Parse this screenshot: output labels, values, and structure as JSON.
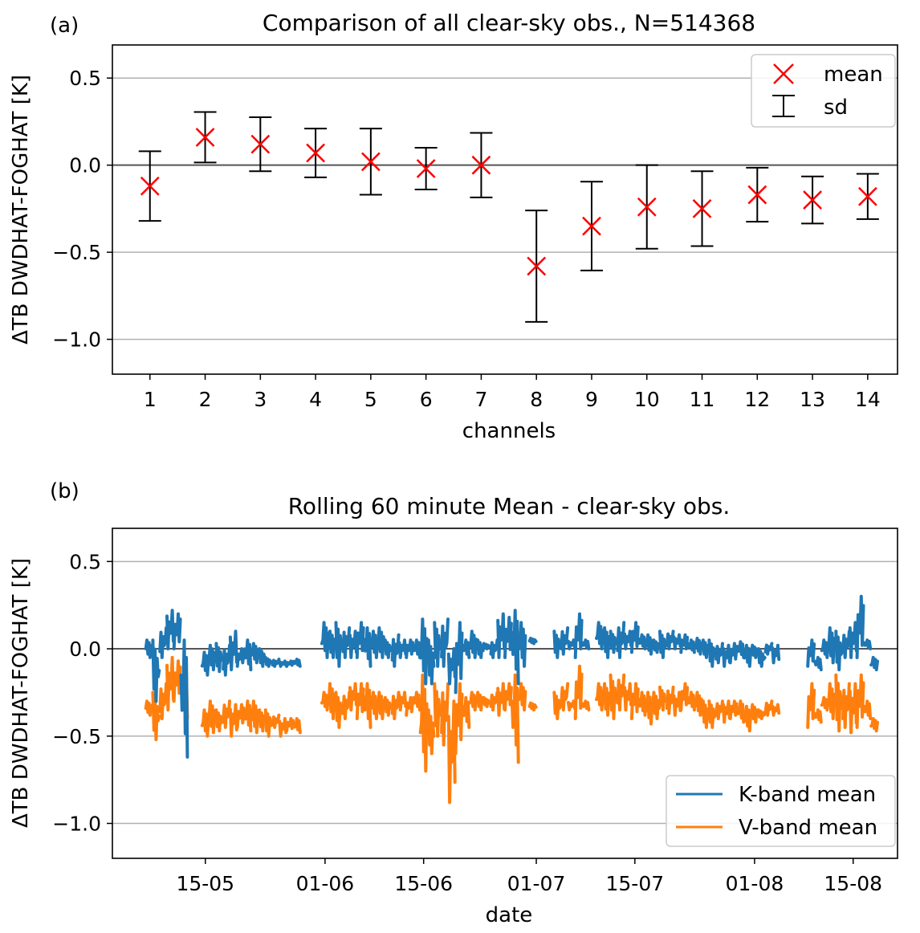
{
  "chart_data": [
    {
      "type": "errorbar",
      "panel_label": "(a)",
      "title": "Comparison of all clear-sky obs., N=514368",
      "xlabel": "channels",
      "ylabel": "ΔTB DWDHAT-FOGHAT [K]",
      "xlim": [
        0.32,
        14.54
      ],
      "ylim": [
        -1.2,
        0.69
      ],
      "yticks": [
        0.5,
        0.0,
        -0.5,
        -1.0
      ],
      "ytick_labels": [
        "0.5",
        "0.0",
        "−0.5",
        "−1.0"
      ],
      "grid": "horizontal",
      "legend": {
        "placement": "top-right",
        "entries": [
          "mean",
          "sd"
        ]
      },
      "categories": [
        "1",
        "2",
        "3",
        "4",
        "5",
        "6",
        "7",
        "8",
        "9",
        "10",
        "11",
        "12",
        "13",
        "14"
      ],
      "mean": [
        -0.12,
        0.16,
        0.12,
        0.07,
        0.02,
        -0.02,
        0.0,
        -0.58,
        -0.35,
        -0.24,
        -0.25,
        -0.17,
        -0.2,
        -0.18
      ],
      "sd": [
        0.2,
        0.145,
        0.155,
        0.14,
        0.19,
        0.12,
        0.185,
        0.32,
        0.255,
        0.24,
        0.215,
        0.155,
        0.135,
        0.13
      ],
      "colors": {
        "mean": "#ff0000",
        "sd": "#000000"
      }
    },
    {
      "type": "line",
      "panel_label": "(b)",
      "title": "Rolling 60 minute Mean - clear-sky obs.",
      "xlabel": "date",
      "ylabel": "ΔTB DWDHAT-FOGHAT [K]",
      "x_units": "days since 01-05",
      "xlim": [
        0.8,
        112.3
      ],
      "ylim": [
        -1.2,
        0.69
      ],
      "xticks": [
        {
          "day": 14,
          "label": "15-05"
        },
        {
          "day": 31,
          "label": "01-06"
        },
        {
          "day": 45,
          "label": "15-06"
        },
        {
          "day": 61,
          "label": "01-07"
        },
        {
          "day": 75,
          "label": "15-07"
        },
        {
          "day": 92,
          "label": "01-08"
        },
        {
          "day": 106,
          "label": "15-08"
        }
      ],
      "yticks": [
        0.5,
        0.0,
        -0.5,
        -1.0
      ],
      "ytick_labels": [
        "0.5",
        "0.0",
        "−0.5",
        "−1.0"
      ],
      "grid": "horizontal",
      "legend": {
        "placement": "bottom-right"
      },
      "series": [
        {
          "name": "K-band mean",
          "color": "#1f77b4"
        },
        {
          "name": "V-band mean",
          "color": "#ff7f0e"
        }
      ],
      "daily_range_columns": [
        "day",
        "k_min",
        "k_max",
        "v_min",
        "v_max"
      ],
      "daily_range": [
        [
          6,
          -0.05,
          0.05,
          -0.38,
          -0.3
        ],
        [
          7,
          -0.3,
          0.05,
          -0.52,
          -0.25
        ],
        [
          8,
          -0.05,
          0.12,
          -0.4,
          -0.2
        ],
        [
          9,
          0.0,
          0.22,
          -0.35,
          -0.05
        ],
        [
          10,
          0.0,
          0.2,
          -0.3,
          -0.07
        ],
        [
          11,
          -0.62,
          0.05,
          -0.4,
          -0.1
        ],
        [
          14,
          -0.15,
          -0.02,
          -0.5,
          -0.35
        ],
        [
          15,
          -0.12,
          0.02,
          -0.48,
          -0.3
        ],
        [
          16,
          -0.13,
          0.03,
          -0.47,
          -0.35
        ],
        [
          17,
          -0.15,
          0.02,
          -0.45,
          -0.3
        ],
        [
          18,
          -0.12,
          0.1,
          -0.5,
          -0.32
        ],
        [
          19,
          -0.1,
          0.0,
          -0.45,
          -0.32
        ],
        [
          20,
          -0.12,
          0.05,
          -0.47,
          -0.3
        ],
        [
          21,
          -0.08,
          0.03,
          -0.48,
          -0.3
        ],
        [
          22,
          -0.1,
          0.0,
          -0.47,
          -0.35
        ],
        [
          23,
          -0.1,
          -0.05,
          -0.5,
          -0.35
        ],
        [
          24,
          -0.1,
          -0.06,
          -0.45,
          -0.38
        ],
        [
          25,
          -0.1,
          -0.07,
          -0.5,
          -0.4
        ],
        [
          26,
          -0.1,
          -0.07,
          -0.47,
          -0.4
        ],
        [
          27,
          -0.1,
          -0.06,
          -0.48,
          -0.4
        ],
        [
          31,
          -0.05,
          0.15,
          -0.35,
          -0.25
        ],
        [
          32,
          -0.05,
          0.1,
          -0.4,
          -0.2
        ],
        [
          33,
          -0.1,
          0.15,
          -0.45,
          -0.25
        ],
        [
          34,
          -0.05,
          0.12,
          -0.4,
          -0.25
        ],
        [
          35,
          -0.05,
          0.1,
          -0.35,
          -0.2
        ],
        [
          36,
          -0.05,
          0.15,
          -0.4,
          -0.2
        ],
        [
          37,
          -0.1,
          0.12,
          -0.45,
          -0.2
        ],
        [
          38,
          -0.05,
          0.1,
          -0.4,
          -0.25
        ],
        [
          39,
          -0.05,
          0.12,
          -0.4,
          -0.25
        ],
        [
          40,
          -0.05,
          0.05,
          -0.38,
          -0.28
        ],
        [
          41,
          -0.1,
          0.08,
          -0.4,
          -0.25
        ],
        [
          42,
          -0.05,
          0.05,
          -0.35,
          -0.25
        ],
        [
          43,
          -0.05,
          0.05,
          -0.38,
          -0.28
        ],
        [
          44,
          -0.05,
          0.05,
          -0.35,
          -0.25
        ],
        [
          45,
          -0.2,
          0.17,
          -0.7,
          -0.15
        ],
        [
          46,
          -0.2,
          0.05,
          -0.6,
          -0.35
        ],
        [
          47,
          -0.1,
          0.15,
          -0.5,
          -0.2
        ],
        [
          48,
          -0.1,
          0.17,
          -0.55,
          -0.2
        ],
        [
          49,
          -0.2,
          0.0,
          -0.88,
          -0.3
        ],
        [
          50,
          -0.25,
          0.15,
          -0.6,
          -0.2
        ],
        [
          51,
          -0.05,
          0.05,
          -0.45,
          -0.28
        ],
        [
          52,
          -0.05,
          0.1,
          -0.35,
          -0.25
        ],
        [
          53,
          -0.05,
          0.05,
          -0.35,
          -0.25
        ],
        [
          54,
          0.0,
          0.03,
          -0.33,
          -0.28
        ],
        [
          55,
          -0.05,
          0.05,
          -0.35,
          -0.25
        ],
        [
          56,
          -0.05,
          0.2,
          -0.38,
          -0.2
        ],
        [
          57,
          -0.05,
          0.18,
          -0.35,
          -0.2
        ],
        [
          58,
          -0.2,
          0.22,
          -0.65,
          -0.15
        ],
        [
          59,
          -0.1,
          0.15,
          -0.35,
          -0.2
        ],
        [
          60.5,
          0.03,
          0.06,
          -0.35,
          -0.31
        ],
        [
          64,
          -0.05,
          0.1,
          -0.4,
          -0.25
        ],
        [
          65,
          -0.03,
          0.12,
          -0.35,
          -0.2
        ],
        [
          66,
          0.0,
          0.05,
          -0.35,
          -0.3
        ],
        [
          67,
          -0.05,
          0.2,
          -0.4,
          -0.1
        ],
        [
          68,
          0.0,
          0.05,
          -0.35,
          -0.3
        ],
        [
          70,
          0.0,
          0.15,
          -0.35,
          -0.2
        ],
        [
          71,
          -0.05,
          0.12,
          -0.38,
          -0.2
        ],
        [
          72,
          -0.02,
          0.1,
          -0.4,
          -0.15
        ],
        [
          73,
          -0.05,
          0.15,
          -0.35,
          -0.15
        ],
        [
          74,
          0.0,
          0.1,
          -0.35,
          -0.2
        ],
        [
          75,
          -0.02,
          0.15,
          -0.4,
          -0.2
        ],
        [
          76,
          0.0,
          0.08,
          -0.38,
          -0.25
        ],
        [
          77,
          -0.03,
          0.08,
          -0.43,
          -0.25
        ],
        [
          78,
          -0.02,
          0.05,
          -0.4,
          -0.25
        ],
        [
          79,
          -0.05,
          0.1,
          -0.35,
          -0.22
        ],
        [
          80,
          0.0,
          0.1,
          -0.37,
          -0.22
        ],
        [
          81,
          0.0,
          0.08,
          -0.38,
          -0.25
        ],
        [
          82,
          -0.02,
          0.08,
          -0.35,
          -0.2
        ],
        [
          83,
          -0.02,
          0.05,
          -0.35,
          -0.25
        ],
        [
          84,
          -0.03,
          0.06,
          -0.38,
          -0.25
        ],
        [
          85,
          -0.05,
          0.05,
          -0.45,
          -0.3
        ],
        [
          86,
          -0.1,
          0.05,
          -0.45,
          -0.3
        ],
        [
          87,
          -0.08,
          0.03,
          -0.4,
          -0.3
        ],
        [
          88,
          -0.1,
          0.02,
          -0.42,
          -0.3
        ],
        [
          89,
          -0.08,
          0.03,
          -0.4,
          -0.3
        ],
        [
          90,
          -0.05,
          0.04,
          -0.42,
          -0.3
        ],
        [
          91,
          -0.1,
          0.02,
          -0.47,
          -0.33
        ],
        [
          92,
          -0.05,
          0.02,
          -0.42,
          -0.32
        ],
        [
          93,
          -0.1,
          0.0,
          -0.4,
          -0.35
        ],
        [
          94,
          -0.03,
          0.03,
          -0.38,
          -0.3
        ],
        [
          95,
          -0.08,
          0.02,
          -0.38,
          -0.32
        ],
        [
          100,
          -0.1,
          0.05,
          -0.45,
          -0.2
        ],
        [
          101,
          -0.12,
          -0.05,
          -0.42,
          -0.35
        ],
        [
          102,
          -0.05,
          0.05,
          -0.35,
          -0.28
        ],
        [
          103,
          -0.08,
          0.12,
          -0.4,
          -0.2
        ],
        [
          104,
          -0.12,
          0.1,
          -0.47,
          -0.15
        ],
        [
          105,
          -0.05,
          0.1,
          -0.45,
          -0.2
        ],
        [
          106,
          -0.05,
          0.15,
          -0.48,
          -0.2
        ],
        [
          107,
          -0.05,
          0.3,
          -0.45,
          -0.15
        ],
        [
          108,
          0.0,
          0.05,
          -0.4,
          -0.3
        ],
        [
          109,
          -0.12,
          -0.05,
          -0.47,
          -0.4
        ]
      ]
    }
  ]
}
